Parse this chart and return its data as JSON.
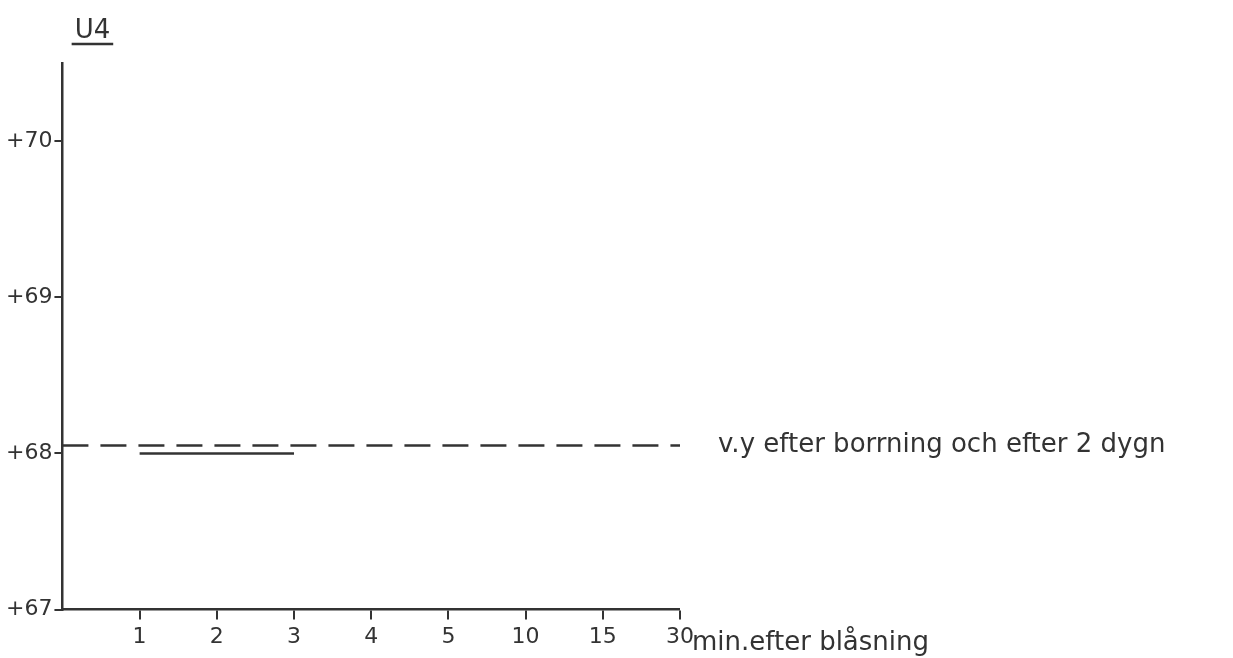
{
  "chart_data": {
    "type": "line",
    "title": "U4",
    "xlabel": "min.efter blåsning",
    "categories": [
      null,
      "1",
      "2",
      "3",
      "4",
      "5",
      "10",
      "15",
      "30"
    ],
    "series": [
      {
        "name": null,
        "color": "#333333",
        "values": [
          null,
          68.0,
          68.0,
          68.0,
          null,
          null,
          null,
          null,
          null
        ]
      }
    ],
    "ylim": [
      67,
      70.5
    ],
    "yticks": [
      {
        "value": 67,
        "label": "+67"
      },
      {
        "value": 68,
        "label": "+68"
      },
      {
        "value": 69,
        "label": "+69"
      },
      {
        "value": 70,
        "label": "+70"
      }
    ],
    "ref_lines": [
      {
        "axis": "y",
        "value": 68.05,
        "label": "v.y efter borrning och efter 2 dygn",
        "color": "#333333",
        "line_style": "dashed"
      }
    ],
    "grid": false,
    "legend": false,
    "marker": "none",
    "line_style": "solid"
  }
}
